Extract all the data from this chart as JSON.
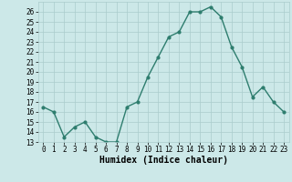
{
  "x": [
    0,
    1,
    2,
    3,
    4,
    5,
    6,
    7,
    8,
    9,
    10,
    11,
    12,
    13,
    14,
    15,
    16,
    17,
    18,
    19,
    20,
    21,
    22,
    23
  ],
  "y": [
    16.5,
    16.0,
    13.5,
    14.5,
    15.0,
    13.5,
    13.0,
    13.0,
    16.5,
    17.0,
    19.5,
    21.5,
    23.5,
    24.0,
    26.0,
    26.0,
    26.5,
    25.5,
    22.5,
    20.5,
    17.5,
    18.5,
    17.0,
    16.0
  ],
  "xlabel": "Humidex (Indice chaleur)",
  "xlim": [
    -0.5,
    23.5
  ],
  "ylim": [
    13,
    27
  ],
  "yticks": [
    13,
    14,
    15,
    16,
    17,
    18,
    19,
    20,
    21,
    22,
    23,
    24,
    25,
    26
  ],
  "xticks": [
    0,
    1,
    2,
    3,
    4,
    5,
    6,
    7,
    8,
    9,
    10,
    11,
    12,
    13,
    14,
    15,
    16,
    17,
    18,
    19,
    20,
    21,
    22,
    23
  ],
  "line_color": "#2e7d6e",
  "marker_size": 2.0,
  "line_width": 1.0,
  "bg_color": "#cce8e8",
  "grid_color": "#aacccc",
  "xlabel_fontsize": 7,
  "tick_fontsize": 5.5
}
